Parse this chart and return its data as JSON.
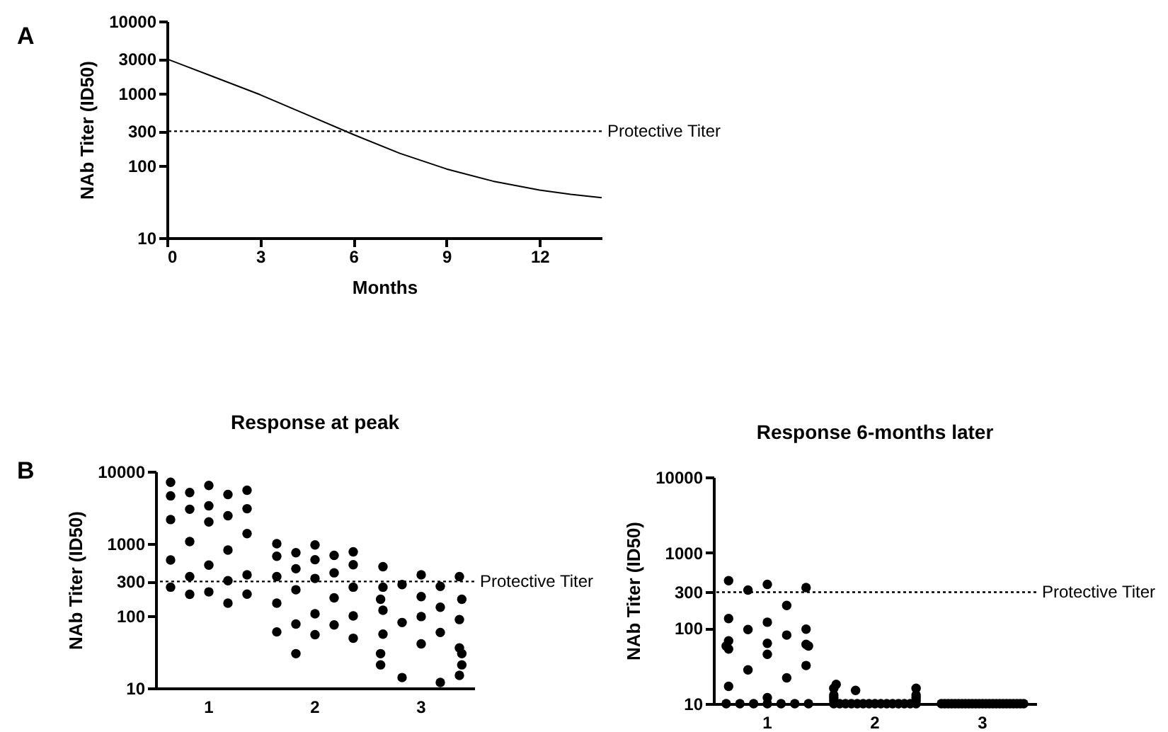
{
  "chart_data": [
    {
      "type": "line",
      "annotations": [
        "A"
      ],
      "xlabel": "Months",
      "ylabel": "NAb Titer (ID50)",
      "log": "y",
      "grid": false,
      "x": [
        0,
        1.5,
        3,
        4.5,
        6,
        7.5,
        9,
        10.5,
        12,
        13,
        14
      ],
      "series": [
        {
          "color": "#000000",
          "values": [
            3000,
            1700,
            960,
            510,
            270,
            148,
            90,
            61,
            46,
            40,
            36
          ]
        }
      ],
      "xlim": [
        0,
        14
      ],
      "xticks": [
        0,
        3,
        6,
        9,
        12
      ],
      "ylim": [
        10,
        10000
      ],
      "yticks": [
        10,
        100,
        300,
        1000,
        3000,
        10000
      ],
      "ref_lines": [
        {
          "axis": "y",
          "value": 300,
          "label": "Protective Titer",
          "line_style": "dotted"
        }
      ]
    },
    {
      "type": "scatter",
      "title": "Response at peak",
      "annotations": [
        "B"
      ],
      "ylabel": "NAb Titer (ID50)",
      "log": "y",
      "grid": false,
      "marker": "circle",
      "categories": [
        "1",
        "2",
        "3"
      ],
      "series": [
        {
          "color": "#000000",
          "x": [
            "1",
            "1",
            "1",
            "1",
            "1",
            "1",
            "1",
            "1",
            "1",
            "1",
            "1",
            "1",
            "1",
            "1",
            "1",
            "1",
            "1",
            "1",
            "1",
            "1",
            "1",
            "1",
            "1",
            "1",
            "1",
            "2",
            "2",
            "2",
            "2",
            "2",
            "2",
            "2",
            "2",
            "2",
            "2",
            "2",
            "2",
            "2",
            "2",
            "2",
            "2",
            "2",
            "2",
            "2",
            "2",
            "2",
            "2",
            "2",
            "2",
            "3",
            "3",
            "3",
            "3",
            "3",
            "3",
            "3",
            "3",
            "3",
            "3",
            "3",
            "3",
            "3",
            "3",
            "3",
            "3",
            "3",
            "3",
            "3",
            "3",
            "3",
            "3",
            "3",
            "3",
            "3"
          ],
          "values": [
            7100,
            6400,
            5500,
            5100,
            4800,
            4600,
            3350,
            3050,
            3000,
            2440,
            2160,
            2000,
            1380,
            1070,
            815,
            595,
            505,
            370,
            350,
            307,
            250,
            215,
            200,
            199,
            150,
            1000,
            960,
            770,
            750,
            690,
            670,
            600,
            510,
            450,
            395,
            350,
            330,
            250,
            230,
            178,
            150,
            107,
            100,
            77,
            75,
            60,
            55,
            49,
            30,
            480,
            370,
            350,
            272,
            257,
            250,
            185,
            170,
            170,
            132,
            120,
            98,
            89,
            81,
            59,
            56,
            41,
            36,
            30,
            30,
            21,
            21,
            15,
            14,
            12
          ]
        }
      ],
      "ylim": [
        10,
        10000
      ],
      "yticks": [
        10,
        100,
        300,
        1000,
        10000
      ],
      "ref_lines": [
        {
          "axis": "y",
          "value": 300,
          "label": "Protective Titer",
          "line_style": "dotted"
        }
      ]
    },
    {
      "type": "scatter",
      "title": "Response 6-months later",
      "ylabel": "NAb Titer (ID50)",
      "log": "y",
      "grid": false,
      "marker": "circle",
      "categories": [
        "1",
        "2",
        "3"
      ],
      "series": [
        {
          "color": "#000000",
          "x": [
            "1",
            "1",
            "1",
            "1",
            "1",
            "1",
            "1",
            "1",
            "1",
            "1",
            "1",
            "1",
            "1",
            "1",
            "1",
            "1",
            "1",
            "1",
            "1",
            "1",
            "1",
            "1",
            "1",
            "1",
            "1",
            "1",
            "1",
            "1",
            "1",
            "2",
            "2",
            "2",
            "2",
            "2",
            "2",
            "2",
            "2",
            "2",
            "2",
            "2",
            "2",
            "2",
            "2",
            "2",
            "2",
            "2",
            "2",
            "2",
            "2",
            "2",
            "2",
            "2",
            "2",
            "2",
            "3",
            "3",
            "3",
            "3",
            "3",
            "3",
            "3",
            "3",
            "3",
            "3",
            "3",
            "3",
            "3",
            "3",
            "3",
            "3",
            "3",
            "3",
            "3",
            "3",
            "3",
            "3",
            "3",
            "3",
            "3"
          ],
          "values": [
            425,
            380,
            345,
            320,
            200,
            134,
            120,
            97,
            96,
            81,
            68,
            63,
            61,
            58,
            58,
            53,
            45,
            32,
            28,
            22,
            17,
            12,
            10,
            10,
            10,
            10,
            10,
            10,
            10,
            18,
            16,
            16,
            15,
            13,
            13,
            12,
            12,
            11,
            11,
            10,
            10,
            10,
            10,
            10,
            10,
            10,
            10,
            10,
            10,
            10,
            10,
            10,
            10,
            10,
            10,
            10,
            10,
            10,
            10,
            10,
            10,
            10,
            10,
            10,
            10,
            10,
            10,
            10,
            10,
            10,
            10,
            10,
            10,
            10,
            10,
            10,
            10,
            10,
            10
          ]
        }
      ],
      "ylim": [
        10,
        10000
      ],
      "yticks": [
        10,
        100,
        300,
        1000,
        10000
      ],
      "ref_lines": [
        {
          "axis": "y",
          "value": 300,
          "label": "Protective Titer",
          "line_style": "dotted"
        }
      ]
    }
  ]
}
